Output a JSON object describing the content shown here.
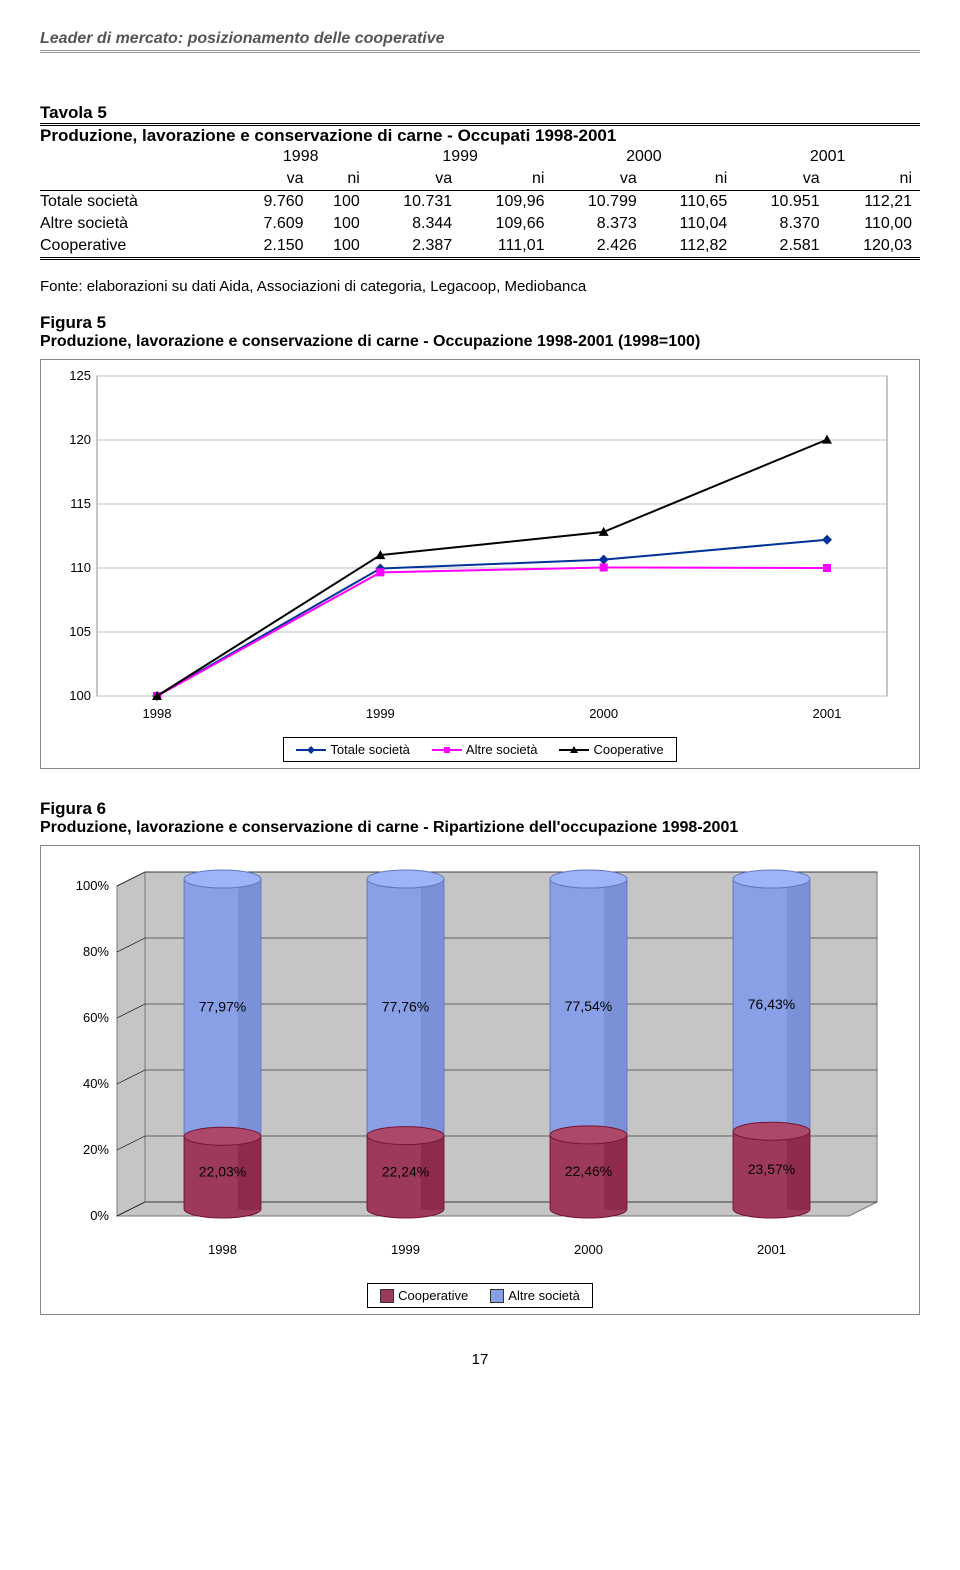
{
  "header": {
    "title": "Leader di mercato: posizionamento delle cooperative"
  },
  "tavola": {
    "label": "Tavola 5",
    "title": "Produzione, lavorazione e conservazione di carne - Occupati 1998-2001",
    "years": [
      "1998",
      "1999",
      "2000",
      "2001"
    ],
    "subheads": [
      "va",
      "ni",
      "va",
      "ni",
      "va",
      "ni",
      "va",
      "ni"
    ],
    "rows": [
      {
        "label": "Totale società",
        "cells": [
          "9.760",
          "100",
          "10.731",
          "109,96",
          "10.799",
          "110,65",
          "10.951",
          "112,21"
        ]
      },
      {
        "label": "Altre società",
        "cells": [
          "7.609",
          "100",
          "8.344",
          "109,66",
          "8.373",
          "110,04",
          "8.370",
          "110,00"
        ]
      },
      {
        "label": "Cooperative",
        "cells": [
          "2.150",
          "100",
          "2.387",
          "111,01",
          "2.426",
          "112,82",
          "2.581",
          "120,03"
        ]
      }
    ]
  },
  "fonte": "Fonte: elaborazioni su dati Aida, Associazioni di categoria, Legacoop, Mediobanca",
  "fig5": {
    "label": "Figura 5",
    "title": "Produzione, lavorazione e conservazione di carne - Occupazione 1998-2001 (1998=100)",
    "type": "line",
    "xlabels": [
      "1998",
      "1999",
      "2000",
      "2001"
    ],
    "ylim": [
      100,
      125
    ],
    "ytick_step": 5,
    "yticks": [
      "100",
      "105",
      "110",
      "115",
      "120",
      "125"
    ],
    "plot_bg": "#ffffff",
    "grid_color": "#bfbfbf",
    "border_color": "#888888",
    "series": [
      {
        "name": "Totale società",
        "color": "#003399",
        "marker": "diamond",
        "values": [
          100,
          109.96,
          110.65,
          112.21
        ]
      },
      {
        "name": "Altre società",
        "color": "#ff00ff",
        "marker": "square",
        "values": [
          100,
          109.66,
          110.04,
          110.0
        ]
      },
      {
        "name": "Cooperative",
        "color": "#000000",
        "marker": "triangle",
        "values": [
          100,
          111.01,
          112.82,
          120.03
        ]
      }
    ],
    "legend": [
      "Totale società",
      "Altre società",
      "Cooperative"
    ],
    "label_fontsize": 13
  },
  "fig6": {
    "label": "Figura 6",
    "title": "Produzione, lavorazione e conservazione di carne - Ripartizione dell'occupazione 1998-2001",
    "type": "stacked-cylinder-3d",
    "xlabels": [
      "1998",
      "1999",
      "2000",
      "2001"
    ],
    "yticks": [
      "0%",
      "20%",
      "40%",
      "60%",
      "80%",
      "100%"
    ],
    "plot_bg": "#c5c5c5",
    "floor_color": "#c5c5c5",
    "wall_color": "#c5c5c5",
    "grid_color": "#000000",
    "series_top": {
      "name": "Altre società",
      "color": "#8aa0e6",
      "values": [
        "77,97%",
        "77,76%",
        "77,54%",
        "76,43%"
      ],
      "num": [
        77.97,
        77.76,
        77.54,
        76.43
      ]
    },
    "series_bottom": {
      "name": "Cooperative",
      "color": "#9d3a5c",
      "values": [
        "22,03%",
        "22,24%",
        "22,46%",
        "23,57%"
      ],
      "num": [
        22.03,
        22.24,
        22.46,
        23.57
      ]
    },
    "legend": [
      "Cooperative",
      "Altre società"
    ],
    "label_fontsize": 13
  },
  "page_number": "17"
}
